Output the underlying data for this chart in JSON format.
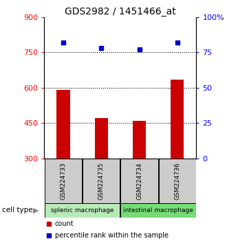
{
  "title": "GDS2982 / 1451466_at",
  "samples": [
    "GSM224733",
    "GSM224735",
    "GSM224734",
    "GSM224736"
  ],
  "counts": [
    590,
    470,
    460,
    635
  ],
  "percentiles": [
    82,
    78,
    77,
    82
  ],
  "ylim_left": [
    300,
    900
  ],
  "ylim_right": [
    0,
    100
  ],
  "yticks_left": [
    300,
    450,
    600,
    750,
    900
  ],
  "yticks_right": [
    0,
    25,
    50,
    75,
    100
  ],
  "bar_color": "#cc0000",
  "dot_color": "#0000cc",
  "bar_width": 0.35,
  "groups": [
    {
      "label": "splenic macrophage",
      "indices": [
        0,
        1
      ],
      "color": "#b8eab8"
    },
    {
      "label": "intestinal macrophage",
      "indices": [
        2,
        3
      ],
      "color": "#77dd77"
    }
  ],
  "sample_box_color": "#cccccc",
  "cell_type_label": "cell type",
  "legend_count_label": "count",
  "legend_percentile_label": "percentile rank within the sample",
  "title_fontsize": 10,
  "tick_fontsize": 8,
  "dot_gridline_vals": [
    450,
    600,
    750
  ]
}
